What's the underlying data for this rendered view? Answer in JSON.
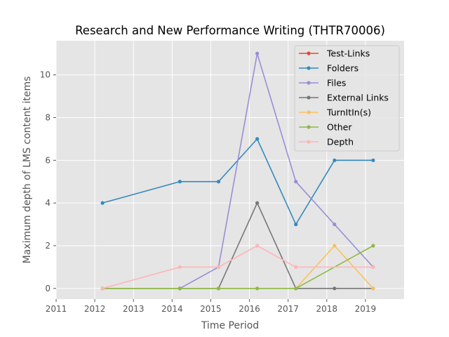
{
  "chart_data": {
    "type": "line",
    "title": "Research and New Performance Writing (THTR70006)",
    "xlabel": "Time Period",
    "ylabel": "Maximum depth of LMS content items",
    "xlim": [
      2011,
      2020
    ],
    "ylim": [
      -0.5,
      11.6
    ],
    "xticks": [
      2011,
      2012,
      2013,
      2014,
      2015,
      2016,
      2017,
      2018,
      2019
    ],
    "yticks": [
      0,
      2,
      4,
      6,
      8,
      10
    ],
    "grid": true,
    "legend_position": "top-right",
    "series": [
      {
        "name": "Test-Links",
        "color": "#e24a33",
        "x": [],
        "y": []
      },
      {
        "name": "Folders",
        "color": "#348abd",
        "x": [
          2012.2,
          2014.2,
          2015.2,
          2016.2,
          2017.2,
          2018.2,
          2019.2
        ],
        "y": [
          4,
          5,
          5,
          7,
          3,
          6,
          6
        ]
      },
      {
        "name": "Files",
        "color": "#988ed5",
        "x": [
          2014.2,
          2015.2,
          2016.2,
          2017.2,
          2018.2,
          2019.2
        ],
        "y": [
          0,
          1,
          11,
          5,
          3,
          1
        ]
      },
      {
        "name": "External Links",
        "color": "#777777",
        "x": [
          2012.2,
          2014.2,
          2015.2,
          2016.2,
          2017.2,
          2018.2,
          2019.2
        ],
        "y": [
          0,
          0,
          0,
          4,
          0,
          0,
          0
        ]
      },
      {
        "name": "TurnItIn(s)",
        "color": "#fbc15e",
        "x": [
          2017.2,
          2018.2,
          2019.2
        ],
        "y": [
          0,
          2,
          0
        ]
      },
      {
        "name": "Other",
        "color": "#8eba42",
        "x": [
          2012.2,
          2014.2,
          2015.2,
          2016.2,
          2017.2,
          2019.2
        ],
        "y": [
          0,
          0,
          0,
          0,
          0,
          2
        ]
      },
      {
        "name": "Depth",
        "color": "#ffb5b8",
        "x": [
          2012.2,
          2014.2,
          2015.2,
          2016.2,
          2017.2,
          2019.2
        ],
        "y": [
          0,
          1,
          1,
          2,
          1,
          1
        ]
      }
    ]
  }
}
